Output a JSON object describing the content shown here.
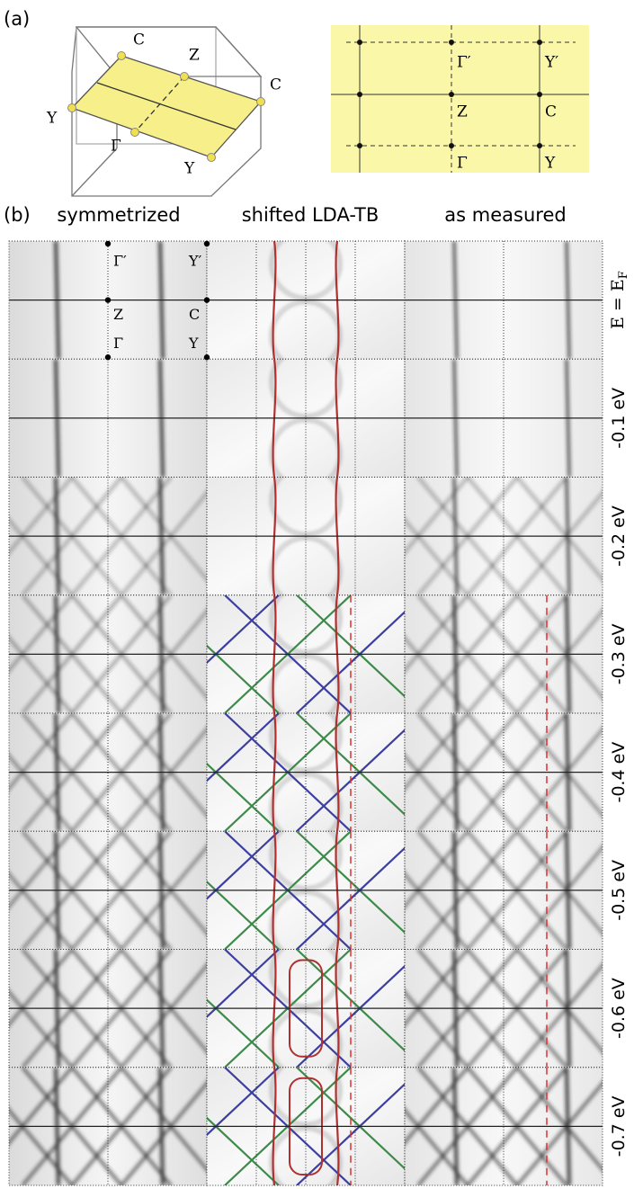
{
  "panel_a": {
    "label": "(a)",
    "bz3d": [
      "C",
      "Z",
      "C",
      "Y",
      "Γ",
      "Y"
    ],
    "bz2d": [
      "Γ′",
      "Y′",
      "Z",
      "C",
      "Γ",
      "Y"
    ]
  },
  "panel_b": {
    "label": "(b)",
    "columns": [
      "symmetrized",
      "shifted LDA-TB",
      "as measured"
    ],
    "points": [
      "Γ′",
      "Y′",
      "Z",
      "C",
      "Γ",
      "Y"
    ],
    "rows": [
      {
        "main": "E = E",
        "sub": "F"
      },
      {
        "main": "-0.1 eV"
      },
      {
        "main": "-0.2 eV"
      },
      {
        "main": "-0.3 eV"
      },
      {
        "main": "-0.4 eV"
      },
      {
        "main": "-0.5 eV"
      },
      {
        "main": "-0.6 eV"
      },
      {
        "main": "-0.7 eV"
      }
    ]
  }
}
